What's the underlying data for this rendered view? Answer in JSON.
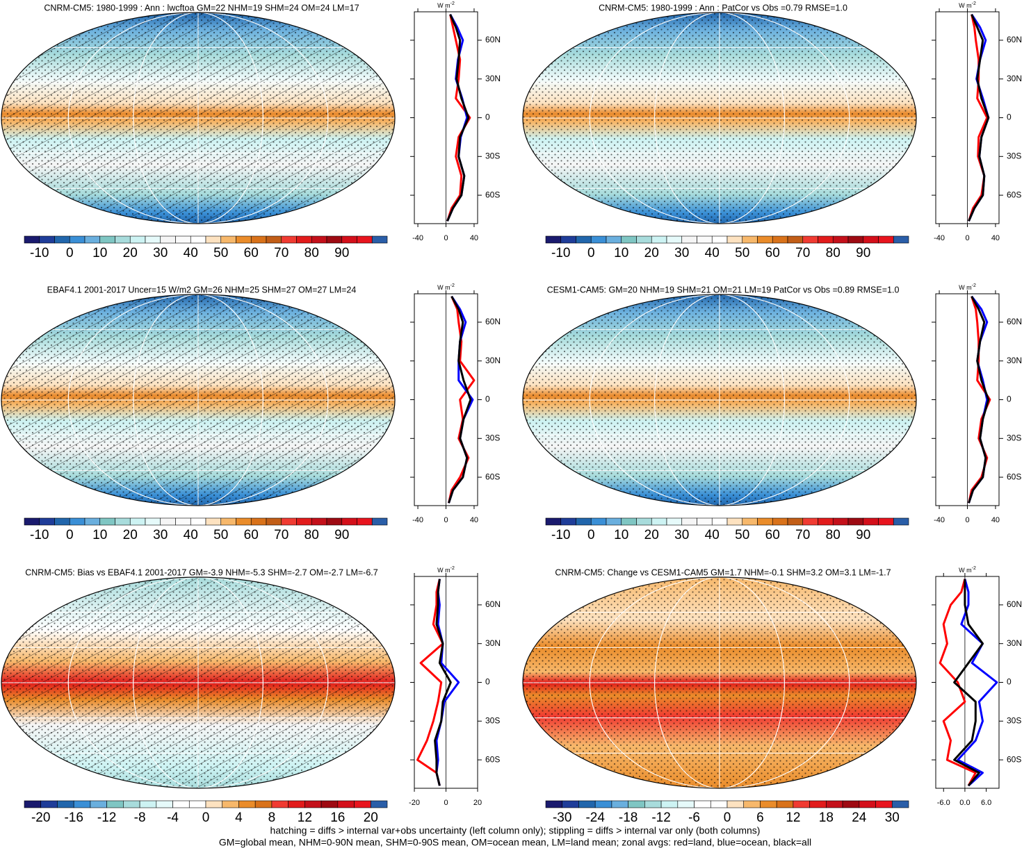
{
  "panels": [
    {
      "title": "CNRM-CM5: 1980-1999 : Ann : lwcftoa GM=22 NHM=19 SHM=24 OM=24 LM=17",
      "colorbar": {
        "clim": [
          -15,
          105
        ],
        "ticks": [
          -10,
          0,
          10,
          20,
          30,
          40,
          50,
          60,
          70,
          80,
          90
        ],
        "colors": [
          "#1a1a6e",
          "#1f3d99",
          "#2166ac",
          "#3a8fd6",
          "#6aafde",
          "#7fc6c3",
          "#a8dcdc",
          "#cdf3f3",
          "#e6fafa",
          "#f5f5f5",
          "#fafafa",
          "#ffffff",
          "#fde2c0",
          "#f7b86b",
          "#ea8c2a",
          "#d9721a",
          "#c25e17",
          "#f03b32",
          "#e21b1b",
          "#c4101a",
          "#9e0a12",
          "#d40f1a",
          "#e8141e",
          "#2a5ea8"
        ]
      },
      "zonal": {
        "type": "line",
        "unit": "W m",
        "unit_power": "-2",
        "xlim": [
          -45,
          45
        ],
        "xticks": [
          -40,
          0,
          40
        ],
        "ylim": [
          -82,
          82
        ],
        "yticks": [
          {
            "value": 60,
            "label": "60N"
          },
          {
            "value": 30,
            "label": "30N"
          },
          0,
          {
            "value": -30,
            "label": "30S"
          },
          {
            "value": -60,
            "label": "60S"
          }
        ],
        "lat": [
          -80,
          -70,
          -60,
          -45,
          -30,
          -15,
          0,
          15,
          30,
          45,
          60,
          70,
          80
        ],
        "series": [
          {
            "color": "#ff0000",
            "values": [
              2,
              8,
              20,
              22,
              14,
              18,
              34,
              14,
              18,
              20,
              14,
              10,
              6
            ]
          },
          {
            "color": "#0000ff",
            "values": [
              2,
              10,
              22,
              26,
              18,
              21,
              30,
              23,
              14,
              17,
              24,
              16,
              6
            ]
          },
          {
            "color": "#000000",
            "values": [
              2,
              10,
              22,
              26,
              18,
              20,
              32,
              22,
              15,
              18,
              20,
              14,
              6
            ]
          }
        ]
      }
    },
    {
      "title": "CNRM-CM5: 1980-1999 : Ann : PatCor vs Obs =0.79 RMSE=1.0",
      "colorbar": {
        "clim": [
          -15,
          105
        ],
        "ticks": [
          -10,
          0,
          10,
          20,
          30,
          40,
          50,
          60,
          70,
          80,
          90
        ],
        "colors": [
          "#1a1a6e",
          "#1f3d99",
          "#2166ac",
          "#3a8fd6",
          "#6aafde",
          "#7fc6c3",
          "#a8dcdc",
          "#cdf3f3",
          "#e6fafa",
          "#f5f5f5",
          "#fafafa",
          "#ffffff",
          "#fde2c0",
          "#f7b86b",
          "#ea8c2a",
          "#d9721a",
          "#c25e17",
          "#f03b32",
          "#e21b1b",
          "#c4101a",
          "#9e0a12",
          "#d40f1a",
          "#e8141e",
          "#2a5ea8"
        ]
      },
      "zonal": {
        "type": "line",
        "unit": "W m",
        "unit_power": "-2",
        "xlim": [
          -45,
          45
        ],
        "xticks": [
          -40,
          0,
          40
        ],
        "ylim": [
          -82,
          82
        ],
        "yticks": [
          {
            "value": 60,
            "label": "60N"
          },
          {
            "value": 30,
            "label": "30N"
          },
          0,
          {
            "value": -30,
            "label": "30S"
          },
          {
            "value": -60,
            "label": "60S"
          }
        ],
        "lat": [
          -80,
          -70,
          -60,
          -45,
          -30,
          -15,
          0,
          15,
          30,
          45,
          60,
          70,
          80
        ],
        "series": [
          {
            "color": "#ff0000",
            "values": [
              2,
              8,
              20,
              24,
              15,
              16,
              28,
              14,
              16,
              16,
              12,
              10,
              6
            ]
          },
          {
            "color": "#0000ff",
            "values": [
              2,
              10,
              22,
              24,
              17,
              20,
              30,
              22,
              13,
              18,
              26,
              18,
              6
            ]
          },
          {
            "color": "#000000",
            "values": [
              2,
              10,
              22,
              24,
              17,
              20,
              30,
              20,
              14,
              18,
              22,
              14,
              6
            ]
          }
        ]
      }
    },
    {
      "title": "EBAF4.1 2001-2017 Uncer=15 W/m2 GM=26 NHM=25 SHM=27 OM=27 LM=24",
      "colorbar": {
        "clim": [
          -15,
          105
        ],
        "ticks": [
          -10,
          0,
          10,
          20,
          30,
          40,
          50,
          60,
          70,
          80,
          90
        ],
        "colors": [
          "#1a1a6e",
          "#1f3d99",
          "#2166ac",
          "#3a8fd6",
          "#6aafde",
          "#7fc6c3",
          "#a8dcdc",
          "#cdf3f3",
          "#e6fafa",
          "#f5f5f5",
          "#fafafa",
          "#ffffff",
          "#fde2c0",
          "#f7b86b",
          "#ea8c2a",
          "#d9721a",
          "#c25e17",
          "#f03b32",
          "#e21b1b",
          "#c4101a",
          "#9e0a12",
          "#d40f1a",
          "#e8141e",
          "#2a5ea8"
        ]
      },
      "zonal": {
        "type": "line",
        "unit": "W m",
        "unit_power": "-2",
        "xlim": [
          -45,
          45
        ],
        "xticks": [
          -40,
          0,
          40
        ],
        "ylim": [
          -82,
          82
        ],
        "yticks": [
          {
            "value": 60,
            "label": "60N"
          },
          {
            "value": 30,
            "label": "30N"
          },
          0,
          {
            "value": -30,
            "label": "30S"
          },
          {
            "value": -60,
            "label": "60S"
          }
        ],
        "lat": [
          -80,
          -70,
          -60,
          -45,
          -30,
          -15,
          0,
          15,
          30,
          45,
          60,
          70,
          80
        ],
        "series": [
          {
            "color": "#ff0000",
            "values": [
              4,
              8,
              20,
              32,
              18,
              24,
              20,
              40,
              20,
              22,
              18,
              16,
              8
            ]
          },
          {
            "color": "#0000ff",
            "values": [
              4,
              10,
              24,
              30,
              20,
              25,
              38,
              18,
              18,
              20,
              28,
              20,
              8
            ]
          },
          {
            "color": "#000000",
            "values": [
              4,
              10,
              24,
              30,
              20,
              25,
              35,
              25,
              18,
              20,
              24,
              18,
              8
            ]
          }
        ]
      }
    },
    {
      "title": "CESM1-CAM5: GM=20 NHM=19 SHM=21 OM=21 LM=19 PatCor vs Obs =0.89 RMSE=1.0",
      "colorbar": {
        "clim": [
          -15,
          105
        ],
        "ticks": [
          -10,
          0,
          10,
          20,
          30,
          40,
          50,
          60,
          70,
          80,
          90
        ],
        "colors": [
          "#1a1a6e",
          "#1f3d99",
          "#2166ac",
          "#3a8fd6",
          "#6aafde",
          "#7fc6c3",
          "#a8dcdc",
          "#cdf3f3",
          "#e6fafa",
          "#f5f5f5",
          "#fafafa",
          "#ffffff",
          "#fde2c0",
          "#f7b86b",
          "#ea8c2a",
          "#d9721a",
          "#c25e17",
          "#f03b32",
          "#e21b1b",
          "#c4101a",
          "#9e0a12",
          "#d40f1a",
          "#e8141e",
          "#2a5ea8"
        ]
      },
      "zonal": {
        "type": "line",
        "unit": "W m",
        "unit_power": "-2",
        "xlim": [
          -45,
          45
        ],
        "xticks": [
          -40,
          0,
          40
        ],
        "ylim": [
          -82,
          82
        ],
        "yticks": [
          {
            "value": 60,
            "label": "60N"
          },
          {
            "value": 30,
            "label": "30N"
          },
          0,
          {
            "value": -30,
            "label": "30S"
          },
          {
            "value": -60,
            "label": "60S"
          }
        ],
        "lat": [
          -80,
          -70,
          -60,
          -45,
          -30,
          -15,
          0,
          15,
          30,
          45,
          60,
          70,
          80
        ],
        "series": [
          {
            "color": "#ff0000",
            "values": [
              2,
              6,
              20,
              28,
              16,
              20,
              32,
              14,
              16,
              16,
              14,
              12,
              6
            ]
          },
          {
            "color": "#0000ff",
            "values": [
              2,
              8,
              22,
              26,
              18,
              22,
              28,
              22,
              14,
              18,
              28,
              20,
              6
            ]
          },
          {
            "color": "#000000",
            "values": [
              2,
              8,
              22,
              26,
              18,
              22,
              30,
              20,
              14,
              18,
              24,
              16,
              6
            ]
          }
        ]
      }
    },
    {
      "title": "CNRM-CM5: Bias vs EBAF4.1 2001-2017 GM=-3.9 NHM=-5.3 SHM=-2.7 OM=-2.7 LM=-6.7",
      "colorbar": {
        "clim": [
          -22,
          22
        ],
        "ticks": [
          -20,
          -16,
          -12,
          -8,
          -4,
          0,
          4,
          8,
          12,
          16,
          20
        ],
        "colors": [
          "#1a1a6e",
          "#1f3d99",
          "#2166ac",
          "#3a8fd6",
          "#6aafde",
          "#7fc6c3",
          "#a8dcdc",
          "#cdf3f3",
          "#e6fafa",
          "#ffffff",
          "#ffffff",
          "#fde2c0",
          "#f7b86b",
          "#ea8c2a",
          "#d9721a",
          "#f03b32",
          "#e21b1b",
          "#c4101a",
          "#9e0a12",
          "#d40f1a",
          "#e8141e",
          "#2a5ea8"
        ]
      },
      "zonal": {
        "type": "line",
        "unit": "W m",
        "unit_power": "-2",
        "xlim": [
          -20,
          20
        ],
        "xticks": [
          -20,
          0,
          20
        ],
        "ylim": [
          -82,
          82
        ],
        "yticks": [
          {
            "value": 60,
            "label": "60N"
          },
          {
            "value": 30,
            "label": "30N"
          },
          0,
          {
            "value": -30,
            "label": "30S"
          },
          {
            "value": -60,
            "label": "60S"
          }
        ],
        "lat": [
          -80,
          -70,
          -60,
          -45,
          -30,
          -15,
          0,
          15,
          30,
          45,
          60,
          70,
          80
        ],
        "series": [
          {
            "color": "#ff0000",
            "values": [
              -4,
              -6,
              -18,
              -12,
              -8,
              -5,
              -3,
              -16,
              -2,
              -8,
              -6,
              -6,
              -4
            ]
          },
          {
            "color": "#0000ff",
            "values": [
              -4,
              -6,
              -5,
              -6,
              -3,
              -1,
              8,
              -3,
              -2,
              -5,
              -4,
              -5,
              -4
            ]
          },
          {
            "color": "#000000",
            "values": [
              -4,
              -6,
              -6,
              -7,
              -3,
              -2,
              3,
              -4,
              -2,
              -6,
              -5,
              -5,
              -4
            ]
          }
        ]
      }
    },
    {
      "title": "CNRM-CM5: Change vs CESM1-CAM5 GM=1.7 NHM=-0.1 SHM=3.2 OM=3.1 LM=-1.7",
      "colorbar": {
        "clim": [
          -33,
          33
        ],
        "ticks": [
          -30,
          -24,
          -18,
          -12,
          -6,
          0,
          6,
          12,
          18,
          24,
          30
        ],
        "colors": [
          "#1a1a6e",
          "#1f3d99",
          "#2166ac",
          "#3a8fd6",
          "#6aafde",
          "#7fc6c3",
          "#a8dcdc",
          "#cdf3f3",
          "#e6fafa",
          "#ffffff",
          "#ffffff",
          "#fde2c0",
          "#f7b86b",
          "#ea8c2a",
          "#d9721a",
          "#f03b32",
          "#e21b1b",
          "#c4101a",
          "#9e0a12",
          "#d40f1a",
          "#e8141e",
          "#2a5ea8"
        ]
      },
      "zonal": {
        "type": "line",
        "unit": "W m",
        "unit_power": "-2",
        "xlim": [
          -8.2,
          9.6
        ],
        "xticks": [
          {
            "value": -6,
            "label": "-6.0"
          },
          {
            "value": 0,
            "label": "0.0"
          },
          {
            "value": 6,
            "label": "6.0"
          }
        ],
        "ylim": [
          -82,
          82
        ],
        "yticks": [
          {
            "value": 60,
            "label": "60N"
          },
          {
            "value": 30,
            "label": "30N"
          },
          0,
          {
            "value": -30,
            "label": "30S"
          },
          {
            "value": -60,
            "label": "60S"
          }
        ],
        "lat": [
          -80,
          -70,
          -60,
          -45,
          -30,
          -15,
          0,
          15,
          30,
          45,
          60,
          70,
          80
        ],
        "series": [
          {
            "color": "#ff0000",
            "values": [
              1,
              3,
              -5,
              -4,
              -6,
              0,
              -2,
              -7,
              -5,
              -6,
              -4,
              -1,
              0
            ]
          },
          {
            "color": "#0000ff",
            "values": [
              1,
              5,
              -2,
              3,
              5,
              4,
              9,
              2,
              5,
              -1,
              1,
              1,
              0
            ]
          },
          {
            "color": "#000000",
            "values": [
              1,
              4,
              -3,
              2,
              3,
              3,
              -3,
              1,
              5,
              1,
              0,
              0,
              0
            ]
          }
        ]
      }
    }
  ],
  "footer": [
    "hatching = diffs > internal var+obs uncertainty (left column only); stippling = diffs > internal var only (both columns)",
    "GM=global mean, NHM=0-90N mean, SHM=0-90S mean, OM=ocean mean, LM=land mean; zonal avgs: red=land, blue=ocean, black=all"
  ]
}
